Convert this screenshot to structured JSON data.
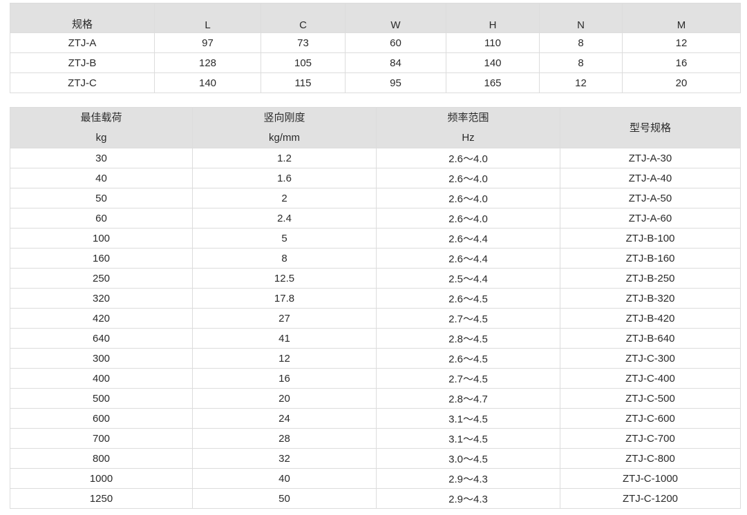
{
  "dimensions_table": {
    "headers": [
      "规格",
      "L",
      "C",
      "W",
      "H",
      "N",
      "M"
    ],
    "rows": [
      [
        "ZTJ-A",
        "97",
        "73",
        "60",
        "110",
        "8",
        "12"
      ],
      [
        "ZTJ-B",
        "128",
        "105",
        "84",
        "140",
        "8",
        "16"
      ],
      [
        "ZTJ-C",
        "140",
        "115",
        "95",
        "165",
        "12",
        "20"
      ]
    ]
  },
  "spec_table": {
    "headers": [
      {
        "label": "最佳载荷",
        "unit": "kg"
      },
      {
        "label": "竖向刚度",
        "unit": "kg/mm"
      },
      {
        "label": "频率范围",
        "unit": "Hz"
      },
      {
        "label": "型号规格",
        "unit": ""
      }
    ],
    "rows": [
      [
        "30",
        "1.2",
        "2.6～4.0",
        "ZTJ-A-30"
      ],
      [
        "40",
        "1.6",
        "2.6～4.0",
        "ZTJ-A-40"
      ],
      [
        "50",
        "2",
        "2.6～4.0",
        "ZTJ-A-50"
      ],
      [
        "60",
        "2.4",
        "2.6～4.0",
        "ZTJ-A-60"
      ],
      [
        "100",
        "5",
        "2.6～4.4",
        "ZTJ-B-100"
      ],
      [
        "160",
        "8",
        "2.6～4.4",
        "ZTJ-B-160"
      ],
      [
        "250",
        "12.5",
        "2.5～4.4",
        "ZTJ-B-250"
      ],
      [
        "320",
        "17.8",
        "2.6～4.5",
        "ZTJ-B-320"
      ],
      [
        "420",
        "27",
        "2.7～4.5",
        "ZTJ-B-420"
      ],
      [
        "640",
        "41",
        "2.8～4.5",
        "ZTJ-B-640"
      ],
      [
        "300",
        "12",
        "2.6～4.5",
        "ZTJ-C-300"
      ],
      [
        "400",
        "16",
        "2.7～4.5",
        "ZTJ-C-400"
      ],
      [
        "500",
        "20",
        "2.8～4.7",
        "ZTJ-C-500"
      ],
      [
        "600",
        "24",
        "3.1～4.5",
        "ZTJ-C-600"
      ],
      [
        "700",
        "28",
        "3.1～4.5",
        "ZTJ-C-700"
      ],
      [
        "800",
        "32",
        "3.0～4.5",
        "ZTJ-C-800"
      ],
      [
        "1000",
        "40",
        "2.9～4.3",
        "ZTJ-C-1000"
      ],
      [
        "1250",
        "50",
        "2.9～4.3",
        "ZTJ-C-1200"
      ]
    ]
  }
}
